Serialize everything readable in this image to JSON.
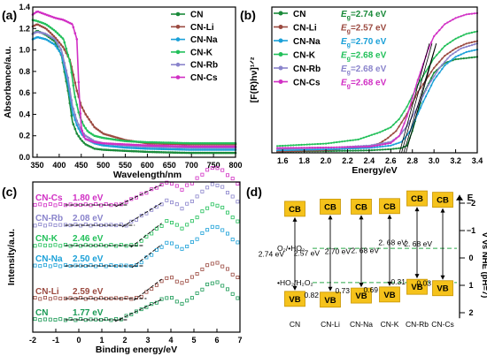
{
  "chart_data": [
    {
      "panel": "(a)",
      "type": "line",
      "xlabel": "Wavelength/nm",
      "ylabel": "Absorbance/a.u.",
      "xlim": [
        340,
        800
      ],
      "ylim": [
        0.0,
        1.4
      ],
      "xticks": [
        350,
        400,
        450,
        500,
        550,
        600,
        650,
        700,
        750,
        800
      ],
      "yticks": [
        0.0,
        0.2,
        0.4,
        0.6,
        0.8,
        1.0,
        1.2,
        1.4
      ],
      "legend_position": "top-right",
      "series": [
        {
          "name": "CN",
          "color": "#1a8a3a",
          "x": [
            340,
            350,
            370,
            390,
            405,
            420,
            430,
            440,
            450,
            460,
            480,
            500,
            550,
            600,
            700,
            800
          ],
          "y": [
            1.15,
            1.18,
            1.14,
            1.08,
            0.95,
            0.62,
            0.33,
            0.22,
            0.16,
            0.12,
            0.08,
            0.07,
            0.06,
            0.05,
            0.04,
            0.04
          ]
        },
        {
          "name": "CN-Li",
          "color": "#9b4a40",
          "x": [
            340,
            350,
            370,
            390,
            410,
            425,
            440,
            450,
            460,
            470,
            480,
            500,
            550,
            600,
            700,
            800
          ],
          "y": [
            1.22,
            1.24,
            1.2,
            1.12,
            1.02,
            0.9,
            0.62,
            0.48,
            0.4,
            0.34,
            0.28,
            0.22,
            0.16,
            0.13,
            0.12,
            0.12
          ]
        },
        {
          "name": "CN-Na",
          "color": "#1aa0d8",
          "x": [
            340,
            350,
            370,
            390,
            405,
            420,
            430,
            440,
            450,
            460,
            480,
            500,
            550,
            600,
            700,
            800
          ],
          "y": [
            1.1,
            1.12,
            1.1,
            1.05,
            0.96,
            0.68,
            0.42,
            0.3,
            0.22,
            0.17,
            0.13,
            0.11,
            0.09,
            0.08,
            0.07,
            0.07
          ]
        },
        {
          "name": "CN-K",
          "color": "#22c05a",
          "x": [
            340,
            350,
            370,
            390,
            410,
            425,
            435,
            445,
            455,
            465,
            480,
            500,
            550,
            600,
            700,
            800
          ],
          "y": [
            1.28,
            1.27,
            1.24,
            1.18,
            1.1,
            0.88,
            0.58,
            0.4,
            0.3,
            0.24,
            0.2,
            0.18,
            0.15,
            0.14,
            0.13,
            0.13
          ]
        },
        {
          "name": "CN-Rb",
          "color": "#8a84cc",
          "x": [
            340,
            350,
            370,
            390,
            405,
            420,
            430,
            440,
            450,
            460,
            480,
            500,
            550,
            600,
            700,
            800
          ],
          "y": [
            1.15,
            1.17,
            1.15,
            1.1,
            1.0,
            0.74,
            0.48,
            0.34,
            0.25,
            0.2,
            0.15,
            0.13,
            0.11,
            0.1,
            0.09,
            0.09
          ]
        },
        {
          "name": "CN-Cs",
          "color": "#d12fc4",
          "x": [
            340,
            350,
            370,
            390,
            410,
            430,
            440,
            445,
            450,
            455,
            460,
            480,
            500,
            550,
            600,
            700,
            800
          ],
          "y": [
            1.33,
            1.36,
            1.33,
            1.3,
            1.28,
            1.24,
            1.1,
            0.6,
            0.28,
            0.2,
            0.17,
            0.14,
            0.13,
            0.12,
            0.11,
            0.1,
            0.1
          ]
        }
      ]
    },
    {
      "panel": "(b)",
      "type": "line",
      "xlabel": "Energy/eV",
      "ylabel": "[F(R)hν]^1/2",
      "xlim": [
        1.5,
        3.4
      ],
      "ylim": [
        0,
        6
      ],
      "xticks": [
        1.6,
        1.8,
        2.0,
        2.2,
        2.4,
        2.6,
        2.8,
        3.0,
        3.2,
        3.4
      ],
      "legend_position": "top-left",
      "legend_values": [
        "2.74 eV",
        "2.57 eV",
        "2.70 eV",
        "2.68 eV",
        "2.68 eV",
        "2.68 eV"
      ],
      "series": [
        {
          "name": "CN",
          "color": "#1a8a3a",
          "x": [
            1.55,
            2.0,
            2.4,
            2.6,
            2.7,
            2.75,
            2.8,
            2.85,
            2.9,
            3.0,
            3.1,
            3.2,
            3.3,
            3.4
          ],
          "y": [
            0.05,
            0.07,
            0.1,
            0.15,
            0.2,
            0.3,
            0.9,
            1.7,
            2.4,
            3.3,
            3.7,
            3.85,
            3.9,
            3.95
          ]
        },
        {
          "name": "CN-Li",
          "color": "#9b4a40",
          "x": [
            1.55,
            2.0,
            2.4,
            2.5,
            2.57,
            2.65,
            2.75,
            2.85,
            3.0,
            3.1,
            3.2,
            3.3,
            3.4
          ],
          "y": [
            0.05,
            0.1,
            0.25,
            0.4,
            0.6,
            0.9,
            1.6,
            2.5,
            3.5,
            4.0,
            4.3,
            4.5,
            4.6
          ]
        },
        {
          "name": "CN-Na",
          "color": "#1aa0d8",
          "x": [
            1.55,
            2.0,
            2.4,
            2.6,
            2.7,
            2.78,
            2.85,
            2.9,
            3.0,
            3.1,
            3.2,
            3.3,
            3.4
          ],
          "y": [
            0.1,
            0.14,
            0.2,
            0.3,
            0.45,
            0.9,
            1.6,
            2.1,
            3.0,
            3.6,
            3.95,
            4.15,
            4.25
          ]
        },
        {
          "name": "CN-K",
          "color": "#22c05a",
          "x": [
            1.55,
            2.0,
            2.3,
            2.5,
            2.6,
            2.68,
            2.75,
            2.85,
            3.0,
            3.1,
            3.2,
            3.3,
            3.4
          ],
          "y": [
            0.28,
            0.38,
            0.55,
            0.85,
            1.05,
            1.4,
            1.9,
            2.8,
            3.9,
            4.4,
            4.7,
            4.9,
            5.0
          ]
        },
        {
          "name": "CN-Rb",
          "color": "#8a84cc",
          "x": [
            1.55,
            2.0,
            2.4,
            2.6,
            2.68,
            2.75,
            2.85,
            2.95,
            3.05,
            3.15,
            3.25,
            3.4
          ],
          "y": [
            0.15,
            0.2,
            0.3,
            0.45,
            0.7,
            1.1,
            1.9,
            2.8,
            3.5,
            4.0,
            4.3,
            4.5
          ]
        },
        {
          "name": "CN-Cs",
          "color": "#d12fc4",
          "x": [
            1.55,
            2.0,
            2.4,
            2.6,
            2.68,
            2.75,
            2.85,
            2.95,
            3.0,
            3.1,
            3.2,
            3.3,
            3.4
          ],
          "y": [
            0.2,
            0.22,
            0.25,
            0.4,
            0.7,
            1.5,
            3.0,
            4.3,
            4.8,
            5.3,
            5.55,
            5.7,
            5.75
          ]
        }
      ]
    },
    {
      "panel": "(c)",
      "type": "scatter",
      "xlabel": "Binding energy/eV",
      "ylabel": "Intensity/a.u.",
      "xlim": [
        -2,
        7
      ],
      "xticks": [
        -2,
        -1,
        0,
        1,
        2,
        3,
        4,
        5,
        6,
        7
      ],
      "series": [
        {
          "name": "CN",
          "label": "1.77 eV",
          "color": "#1a9a55"
        },
        {
          "name": "CN-Li",
          "label": "2.59 eV",
          "color": "#9b4a40"
        },
        {
          "name": "CN-Na",
          "label": "2.50 eV",
          "color": "#1aa0d8"
        },
        {
          "name": "CN-K",
          "label": "2.46 eV",
          "color": "#22c05a"
        },
        {
          "name": "CN-Rb",
          "label": "2.08 eV",
          "color": "#8a84cc"
        },
        {
          "name": "CN-Cs",
          "label": "1.80 eV",
          "color": "#d12fc4"
        }
      ]
    },
    {
      "panel": "(d)",
      "type": "diagram",
      "ylabel": "V vs NHE (pH=7)",
      "yaxis_top_label": "E",
      "ylim": [
        -2,
        2
      ],
      "yticks": [
        -2,
        -1,
        0,
        1,
        2
      ],
      "reference_lines": [
        {
          "label": "O₂/•HO₂",
          "value": -0.35
        },
        {
          "label": "•HO₂/H₂O₂",
          "value": 0.9
        }
      ],
      "box_color": "#f5c21b",
      "samples": [
        {
          "name": "CN",
          "cb_label": "CB",
          "vb_label": "VB",
          "gap": "2.74 eV",
          "vb_value": ""
        },
        {
          "name": "CN-Li",
          "cb_label": "CB",
          "vb_label": "VB",
          "gap": "2.57 eV",
          "vb_value": "0.82"
        },
        {
          "name": "CN-Na",
          "cb_label": "CB",
          "vb_label": "VB",
          "gap": "2.70 eV",
          "vb_value": "0.73"
        },
        {
          "name": "CN-K",
          "cb_label": "CB",
          "vb_label": "VB",
          "gap": "2. 68 eV",
          "vb_value": "0.69"
        },
        {
          "name": "CN-Rb",
          "cb_label": "CB",
          "vb_label": "VB",
          "gap": "2. 68 eV",
          "vb_value": "0.31"
        },
        {
          "name": "CN-Cs",
          "cb_label": "CB",
          "vb_label": "VB",
          "gap": "2. 68 eV",
          "vb_value": "0.03"
        }
      ]
    }
  ]
}
